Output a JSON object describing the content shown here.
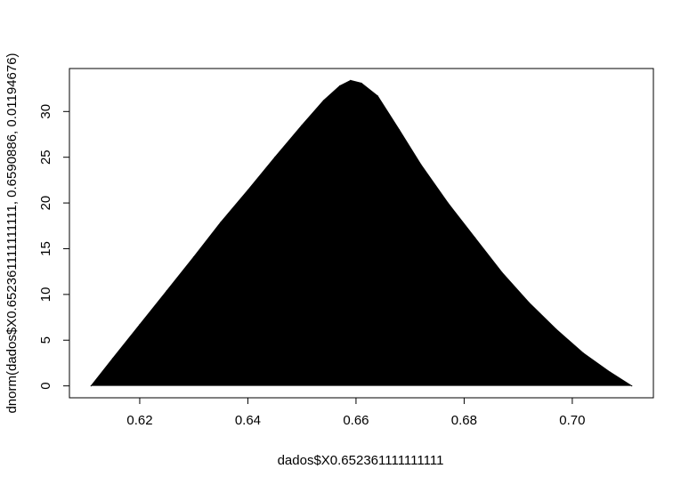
{
  "chart_data": {
    "type": "line",
    "title": "",
    "xlabel": "dados$X0.652361111111111",
    "ylabel": "dnorm(dados$X0.652361111111111, 0.6590886, 0.01194676)",
    "xlim": [
      0.607,
      0.715
    ],
    "ylim": [
      -1.3,
      34.7
    ],
    "xticks": [
      0.62,
      0.64,
      0.66,
      0.68,
      0.7
    ],
    "xtick_labels": [
      "0.62",
      "0.64",
      "0.66",
      "0.68",
      "0.70"
    ],
    "yticks": [
      0,
      5,
      10,
      15,
      20,
      25,
      30
    ],
    "ytick_labels": [
      "0",
      "5",
      "10",
      "15",
      "20",
      "25",
      "30"
    ],
    "grid": false,
    "line_color": "#000000",
    "series": [
      {
        "x": [
          0.611,
          0.615,
          0.62,
          0.625,
          0.63,
          0.635,
          0.64,
          0.645,
          0.65,
          0.654,
          0.657,
          0.659,
          0.661,
          0.664,
          0.668,
          0.672,
          0.677,
          0.682,
          0.687,
          0.692,
          0.697,
          0.702,
          0.707,
          0.711
        ],
        "y": [
          0.0,
          3.0,
          6.7,
          10.4,
          14.1,
          17.9,
          21.4,
          25.0,
          28.5,
          31.2,
          32.8,
          33.4,
          33.1,
          31.7,
          28.0,
          24.2,
          20.0,
          16.2,
          12.4,
          9.1,
          6.2,
          3.6,
          1.5,
          0.0
        ]
      }
    ]
  }
}
